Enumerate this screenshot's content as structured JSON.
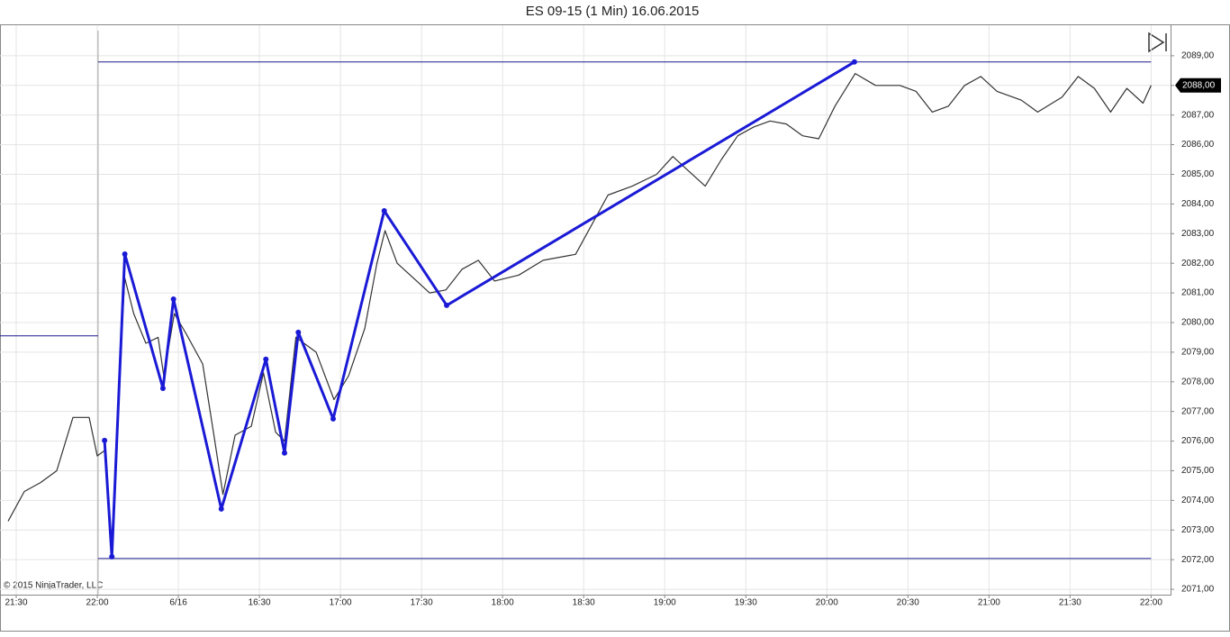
{
  "chart_data": {
    "type": "line",
    "title": "ES 09-15 (1 Min)  16.06.2015",
    "copyright": "© 2015 NinjaTrader, LLC",
    "xlim": [
      -0.2,
      14.24
    ],
    "ylim": [
      2070.82,
      2090.03
    ],
    "xticks": [
      {
        "value": 0,
        "label": "21:30"
      },
      {
        "value": 1,
        "label": "22:00"
      },
      {
        "value": 2,
        "label": "6/16"
      },
      {
        "value": 3,
        "label": "16:30"
      },
      {
        "value": 4,
        "label": "17:00"
      },
      {
        "value": 5,
        "label": "17:30"
      },
      {
        "value": 6,
        "label": "18:00"
      },
      {
        "value": 7,
        "label": "18:30"
      },
      {
        "value": 8,
        "label": "19:00"
      },
      {
        "value": 9,
        "label": "19:30"
      },
      {
        "value": 10,
        "label": "20:00"
      },
      {
        "value": 11,
        "label": "20:30"
      },
      {
        "value": 12,
        "label": "21:00"
      },
      {
        "value": 13,
        "label": "21:30"
      },
      {
        "value": 14,
        "label": "22:00"
      }
    ],
    "yticks": [
      {
        "value": 2071,
        "label": "2071,00"
      },
      {
        "value": 2072,
        "label": "2072,00"
      },
      {
        "value": 2073,
        "label": "2073,00"
      },
      {
        "value": 2074,
        "label": "2074,00"
      },
      {
        "value": 2075,
        "label": "2075,00"
      },
      {
        "value": 2076,
        "label": "2076,00"
      },
      {
        "value": 2077,
        "label": "2077,00"
      },
      {
        "value": 2078,
        "label": "2078,00"
      },
      {
        "value": 2079,
        "label": "2079,00"
      },
      {
        "value": 2080,
        "label": "2080,00"
      },
      {
        "value": 2081,
        "label": "2081,00"
      },
      {
        "value": 2082,
        "label": "2082,00"
      },
      {
        "value": 2083,
        "label": "2083,00"
      },
      {
        "value": 2084,
        "label": "2084,00"
      },
      {
        "value": 2085,
        "label": "2085,00"
      },
      {
        "value": 2086,
        "label": "2086,00"
      },
      {
        "value": 2087,
        "label": "2087,00"
      },
      {
        "value": 2088,
        "label": "2088,00"
      },
      {
        "value": 2089,
        "label": "2089,00"
      }
    ],
    "grid": true,
    "last_price": {
      "value": 2088,
      "label": "2088,00"
    },
    "vline": {
      "x": 1.01,
      "color": "#aaaaaa"
    },
    "hlines": [
      {
        "y": 2088.79,
        "x": [
          1.01,
          14.0
        ],
        "color": "#1a1a8c"
      },
      {
        "y": 2072.04,
        "x": [
          1.01,
          14.0
        ],
        "color": "#1a1a8c"
      },
      {
        "y": 2079.55,
        "x": [
          -0.2,
          1.01
        ],
        "color": "#1a1a8c"
      }
    ],
    "series": [
      {
        "color": "#333333",
        "width": 1.2,
        "markers": false,
        "x": [
          -0.1,
          0.1,
          0.3,
          0.5,
          0.7,
          0.9,
          1.0,
          1.1,
          1.18,
          1.25,
          1.34,
          1.45,
          1.6,
          1.75,
          1.82,
          1.95,
          2.1,
          2.3,
          2.45,
          2.55,
          2.7,
          2.9,
          3.05,
          3.2,
          3.31,
          3.45,
          3.7,
          3.92,
          4.1,
          4.3,
          4.45,
          4.55,
          4.7,
          4.9,
          5.1,
          5.3,
          5.5,
          5.7,
          5.9,
          6.2,
          6.5,
          6.9,
          7.1,
          7.3,
          7.6,
          7.9,
          8.1,
          8.3,
          8.5,
          8.7,
          8.9,
          9.1,
          9.3,
          9.5,
          9.7,
          9.9,
          10.1,
          10.35,
          10.6,
          10.9,
          11.1,
          11.3,
          11.5,
          11.7,
          11.9,
          12.1,
          12.4,
          12.6,
          12.9,
          13.1,
          13.3,
          13.5,
          13.7,
          13.9,
          14.0
        ],
        "values": [
          2073.3,
          2074.3,
          2074.6,
          2075,
          2076.8,
          2076.8,
          2075.5,
          2075.7,
          2072.3,
          2077,
          2081.5,
          2080.3,
          2079.3,
          2079.5,
          2078.2,
          2080.3,
          2079.6,
          2078.6,
          2076,
          2074.2,
          2076.2,
          2076.5,
          2078.3,
          2076.3,
          2076,
          2079.5,
          2079,
          2077.4,
          2078.2,
          2079.8,
          2082,
          2083.1,
          2082,
          2081.5,
          2081,
          2081.1,
          2081.8,
          2082.1,
          2081.4,
          2081.6,
          2082.1,
          2082.3,
          2083.3,
          2084.3,
          2084.6,
          2085,
          2085.6,
          2085.1,
          2084.6,
          2085.5,
          2086.3,
          2086.6,
          2086.8,
          2086.7,
          2086.3,
          2086.2,
          2087.3,
          2088.4,
          2088,
          2088,
          2087.8,
          2087.1,
          2087.3,
          2088,
          2088.3,
          2087.8,
          2087.5,
          2087.1,
          2087.6,
          2088.3,
          2087.9,
          2087.1,
          2087.9,
          2087.4,
          2088
        ]
      },
      {
        "color": "#1a1ad6",
        "width": 3,
        "markers": true,
        "x": [
          1.09,
          1.18,
          1.34,
          1.81,
          1.94,
          2.53,
          3.08,
          3.31,
          3.48,
          3.91,
          4.54,
          5.31,
          10.34
        ],
        "values": [
          2076.02,
          2072.1,
          2082.31,
          2077.78,
          2080.79,
          2073.71,
          2078.76,
          2075.6,
          2079.67,
          2076.75,
          2083.77,
          2080.58,
          2088.79
        ]
      }
    ]
  }
}
